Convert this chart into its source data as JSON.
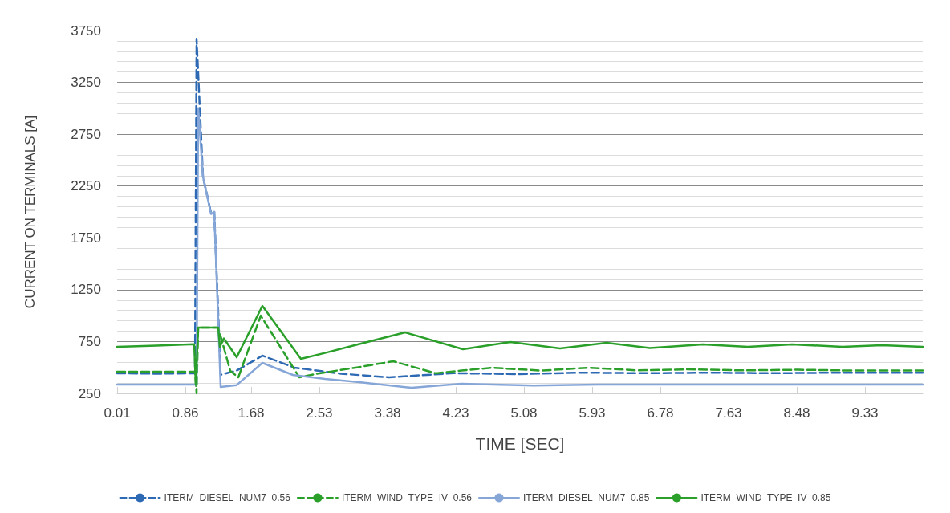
{
  "chart_data": {
    "type": "line",
    "xlabel": "TIME [SEC]",
    "ylabel": "CURRENT ON TERMINALS [A]",
    "xlim": [
      0.01,
      10.05
    ],
    "xticks": [
      0.01,
      0.86,
      1.68,
      2.53,
      3.38,
      4.23,
      5.08,
      5.93,
      6.78,
      7.63,
      8.48,
      9.33
    ],
    "ylim": [
      250,
      3750
    ],
    "yticks": [
      250,
      750,
      1250,
      1750,
      2250,
      2750,
      3250,
      3750
    ],
    "grid": "y",
    "legend": "bottom",
    "marker": "none",
    "series": [
      {
        "name": "ITERM_DIESEL_NUM7_0.56",
        "color": "#2e6ab4",
        "line_style": "dashed",
        "x": [
          0.01,
          0.5,
          0.98,
          1.0,
          1.08,
          1.18,
          1.22,
          1.3,
          1.5,
          1.82,
          2.22,
          2.8,
          3.4,
          4.2,
          5.0,
          5.8,
          6.6,
          7.4,
          8.2,
          9.0,
          10.05
        ],
        "values": [
          444,
          440,
          444,
          3670,
          2340,
          1990,
          2000,
          430,
          470,
          614,
          498,
          440,
          405,
          445,
          436,
          450,
          445,
          450,
          445,
          450,
          450
        ]
      },
      {
        "name": "ITERM_WIND_TYPE_IV_0.56",
        "color": "#2aa02a",
        "line_style": "dashed",
        "x": [
          0.01,
          0.5,
          0.98,
          1.0,
          1.02,
          1.27,
          1.42,
          1.52,
          1.8,
          2.28,
          2.5,
          3.0,
          3.45,
          3.98,
          4.3,
          4.68,
          5.3,
          5.87,
          6.5,
          7.13,
          7.8,
          8.5,
          9.2,
          10.05
        ],
        "values": [
          460,
          460,
          460,
          250,
          885,
          885,
          467,
          405,
          1000,
          405,
          440,
          500,
          560,
          444,
          470,
          497,
          470,
          497,
          472,
          482,
          472,
          478,
          470,
          470
        ]
      },
      {
        "name": "ITERM_DIESEL_NUM7_0.85",
        "color": "#86a6d8",
        "line_style": "solid",
        "x": [
          0.01,
          0.5,
          0.98,
          1.0,
          1.02,
          1.08,
          1.18,
          1.22,
          1.3,
          1.5,
          1.82,
          2.2,
          2.6,
          3.0,
          3.68,
          4.3,
          5.2,
          6.0,
          7.0,
          8.0,
          9.0,
          10.05
        ],
        "values": [
          335,
          335,
          335,
          335,
          3000,
          2340,
          1980,
          2000,
          312,
          330,
          544,
          428,
          390,
          360,
          304,
          343,
          325,
          335,
          335,
          335,
          335,
          335
        ]
      },
      {
        "name": "ITERM_WIND_TYPE_IV_0.85",
        "color": "#2aa02a",
        "line_style": "solid",
        "x": [
          0.01,
          0.5,
          0.97,
          0.99,
          1.02,
          1.27,
          1.29,
          1.34,
          1.5,
          1.82,
          2.3,
          2.6,
          3.0,
          3.6,
          4.32,
          4.91,
          5.53,
          6.11,
          6.65,
          7.31,
          7.87,
          8.42,
          9.05,
          9.54,
          10.05
        ],
        "values": [
          700,
          710,
          725,
          343,
          885,
          885,
          700,
          780,
          598,
          1094,
          583,
          640,
          720,
          838,
          676,
          745,
          684,
          738,
          687,
          722,
          700,
          722,
          700,
          715,
          700
        ]
      }
    ]
  }
}
